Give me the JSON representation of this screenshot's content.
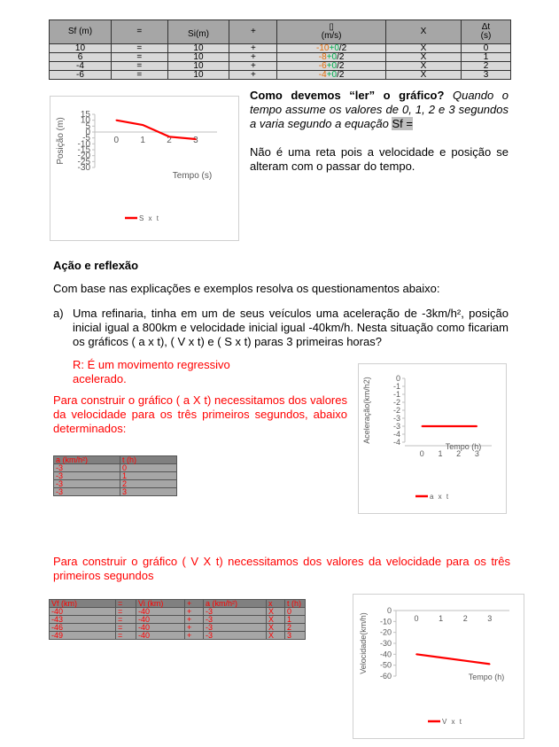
{
  "top_table": {
    "headers": [
      "Sf (m)",
      "=",
      "Si(m)",
      "+",
      "▯\n(m/s)",
      "X",
      "Δt\n(s)"
    ],
    "rows": [
      {
        "sf": "10",
        "eq": "=",
        "si": "10",
        "plus": "+",
        "v_a": "-10",
        "v_b": "+0",
        "v_c": "/2",
        "x": "X",
        "t": "0"
      },
      {
        "sf": "6",
        "eq": "=",
        "si": "10",
        "plus": "+",
        "v_a": "-8",
        "v_b": "+0",
        "v_c": "/2",
        "x": "X",
        "t": "1"
      },
      {
        "sf": "-4",
        "eq": "=",
        "si": "10",
        "plus": "+",
        "v_a": "-6",
        "v_b": "+0",
        "v_c": "/2",
        "x": "X",
        "t": "2"
      },
      {
        "sf": "-6",
        "eq": "=",
        "si": "10",
        "plus": "+",
        "v_a": "-4",
        "v_b": "+0",
        "v_c": "/2",
        "x": "X",
        "t": "3"
      }
    ]
  },
  "intro": {
    "question_bold": "Como devemos “ler” o gráfico?",
    "question_italic": " Quando o tempo assume os valores de 0, 1, 2 e 3 segundos a varia segundo a equação ",
    "highlight": "Sf =",
    "answer": "Não é uma reta pois a velocidade e posição se alteram com o passar do tempo."
  },
  "section": {
    "title": "Ação e reflexão",
    "instruction": "Com base nas explicações e exemplos resolva os questionamentos abaixo:",
    "item_a_label": "a)",
    "item_a_text": "Uma refinaria, tinha em um de seus veículos uma aceleração de -3km/h², posição inicial igual a 800km e velocidade inicial igual -40km/h. Nesta situação como ficariam os gráficos ( a x t), ( V x t) e ( S x t) paras 3 primeiras horas?",
    "item_a_answer": " R: É um movimento regressivo acelerado.",
    "ax_intro": "Para construir o gráfico ( a X t) necessitamos dos valores da velocidade para os três primeiros segundos, abaixo determinados:",
    "vx_intro": "Para construir o gráfico ( V X t) necessitamos dos valores da velocidade para os três primeiros segundos"
  },
  "ax_table": {
    "headers": [
      "a (km/h²)",
      "t (h)"
    ],
    "rows": [
      [
        "-3",
        "0"
      ],
      [
        "-3",
        "1"
      ],
      [
        "-3",
        "2"
      ],
      [
        "-3",
        "3"
      ]
    ]
  },
  "vx_table": {
    "headers": [
      "Vf (km)",
      "=",
      "Vi (km)",
      "+",
      "a (km/h²)",
      "x",
      "t (h)"
    ],
    "rows": [
      [
        "-40",
        "=",
        "-40",
        "+",
        "-3",
        "X",
        "0"
      ],
      [
        "-43",
        "=",
        "-40",
        "+",
        "-3",
        "X",
        "1"
      ],
      [
        "-46",
        "=",
        "-40",
        "+",
        "-3",
        "X",
        "2"
      ],
      [
        "-49",
        "=",
        "-40",
        "+",
        "-3",
        "X",
        "3"
      ]
    ]
  },
  "chart_data": [
    {
      "type": "line",
      "ylabel": "Posição (m)",
      "xlabel": "Tempo (s)",
      "legend": "S x t",
      "x": [
        0,
        1,
        2,
        3
      ],
      "values": [
        10,
        6,
        -4,
        -6
      ],
      "ylim": [
        -30,
        15
      ],
      "yticks": [
        "15",
        "10",
        "5",
        "0",
        "-5",
        "-10",
        "-15",
        "-20",
        "-25",
        "-30"
      ],
      "xticks": [
        "0",
        "1",
        "2",
        "3"
      ],
      "color": "#ff0000"
    },
    {
      "type": "line",
      "ylabel": "Aceleração(km/h2)",
      "xlabel": "Tempo (h)",
      "legend": "a x t",
      "x": [
        0,
        1,
        2,
        3
      ],
      "values": [
        -3,
        -3,
        -3,
        -3
      ],
      "ylim": [
        -4,
        0
      ],
      "yticks": [
        "0",
        "-1",
        "-1",
        "-2",
        "-2",
        "-3",
        "-3",
        "-4",
        "-4"
      ],
      "xticks": [
        "0",
        "1",
        "2",
        "3"
      ],
      "color": "#ff0000"
    },
    {
      "type": "line",
      "ylabel": "Velocidade(km/h)",
      "xlabel": "Tempo (h)",
      "legend": "V x t",
      "x": [
        0,
        1,
        2,
        3
      ],
      "values": [
        -40,
        -43,
        -46,
        -49
      ],
      "ylim": [
        -60,
        0
      ],
      "yticks": [
        "0",
        "-10",
        "-20",
        "-30",
        "-40",
        "-50",
        "-60"
      ],
      "xticks": [
        "0",
        "1",
        "2",
        "3"
      ],
      "color": "#ff0000"
    }
  ]
}
